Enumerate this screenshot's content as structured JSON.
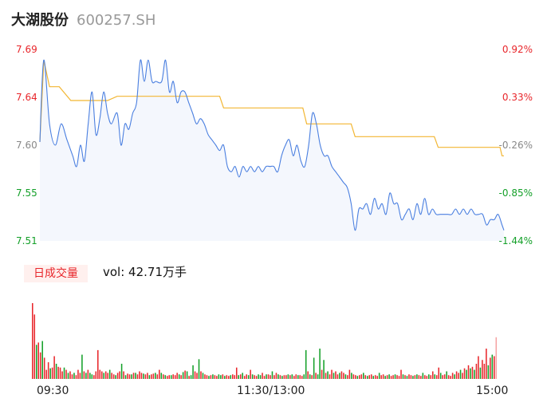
{
  "header": {
    "name": "大湖股份",
    "code": "600257.SH"
  },
  "volume_panel": {
    "badge": "日成交量",
    "vol_label": "vol: 42.71万手"
  },
  "colors": {
    "price_line": "#4a7fe0",
    "avg_line": "#f2b632",
    "up": "#e8262b",
    "down": "#14a029",
    "flat": "#888888",
    "area_fill": "#f4f7fd"
  },
  "chart_data": {
    "type": "line",
    "price_ticks": [
      "7.69",
      "7.64",
      "7.60",
      "7.55",
      "7.51"
    ],
    "pct_ticks": [
      "0.92%",
      "0.33%",
      "-0.26%",
      "-0.85%",
      "-1.44%"
    ],
    "time_ticks": [
      "09:30",
      "11:30/13:00",
      "15:00"
    ],
    "ylim": [
      7.51,
      7.69
    ],
    "sessions": 240,
    "price": [
      [
        0,
        7.603
      ],
      [
        2,
        7.68
      ],
      [
        5,
        7.62
      ],
      [
        8,
        7.6
      ],
      [
        11,
        7.62
      ],
      [
        14,
        7.605
      ],
      [
        17,
        7.59
      ],
      [
        19,
        7.58
      ],
      [
        21,
        7.6
      ],
      [
        23,
        7.585
      ],
      [
        25,
        7.62
      ],
      [
        27,
        7.65
      ],
      [
        29,
        7.61
      ],
      [
        31,
        7.625
      ],
      [
        33,
        7.65
      ],
      [
        35,
        7.63
      ],
      [
        37,
        7.62
      ],
      [
        40,
        7.63
      ],
      [
        42,
        7.6
      ],
      [
        44,
        7.62
      ],
      [
        46,
        7.615
      ],
      [
        48,
        7.63
      ],
      [
        50,
        7.64
      ],
      [
        52,
        7.68
      ],
      [
        54,
        7.66
      ],
      [
        56,
        7.68
      ],
      [
        58,
        7.66
      ],
      [
        60,
        7.66
      ],
      [
        63,
        7.66
      ],
      [
        65,
        7.68
      ],
      [
        67,
        7.65
      ],
      [
        69,
        7.66
      ],
      [
        71,
        7.64
      ],
      [
        73,
        7.65
      ],
      [
        75,
        7.65
      ],
      [
        77,
        7.64
      ],
      [
        79,
        7.63
      ],
      [
        81,
        7.62
      ],
      [
        83,
        7.625
      ],
      [
        85,
        7.62
      ],
      [
        87,
        7.61
      ],
      [
        89,
        7.605
      ],
      [
        91,
        7.6
      ],
      [
        93,
        7.595
      ],
      [
        95,
        7.6
      ],
      [
        97,
        7.58
      ],
      [
        99,
        7.575
      ],
      [
        101,
        7.58
      ],
      [
        103,
        7.57
      ],
      [
        105,
        7.58
      ],
      [
        107,
        7.575
      ],
      [
        109,
        7.58
      ],
      [
        111,
        7.575
      ],
      [
        113,
        7.58
      ],
      [
        115,
        7.575
      ],
      [
        117,
        7.58
      ],
      [
        119,
        7.58
      ],
      [
        121,
        7.58
      ],
      [
        123,
        7.575
      ],
      [
        125,
        7.59
      ],
      [
        127,
        7.6
      ],
      [
        129,
        7.605
      ],
      [
        131,
        7.59
      ],
      [
        133,
        7.6
      ],
      [
        135,
        7.585
      ],
      [
        137,
        7.58
      ],
      [
        139,
        7.6
      ],
      [
        141,
        7.63
      ],
      [
        143,
        7.62
      ],
      [
        145,
        7.6
      ],
      [
        147,
        7.59
      ],
      [
        149,
        7.59
      ],
      [
        151,
        7.58
      ],
      [
        153,
        7.575
      ],
      [
        155,
        7.57
      ],
      [
        157,
        7.565
      ],
      [
        159,
        7.56
      ],
      [
        161,
        7.545
      ],
      [
        163,
        7.52
      ],
      [
        165,
        7.54
      ],
      [
        167,
        7.54
      ],
      [
        169,
        7.545
      ],
      [
        171,
        7.535
      ],
      [
        173,
        7.55
      ],
      [
        175,
        7.54
      ],
      [
        177,
        7.545
      ],
      [
        179,
        7.535
      ],
      [
        181,
        7.555
      ],
      [
        183,
        7.545
      ],
      [
        185,
        7.545
      ],
      [
        187,
        7.53
      ],
      [
        189,
        7.535
      ],
      [
        191,
        7.54
      ],
      [
        193,
        7.53
      ],
      [
        195,
        7.545
      ],
      [
        197,
        7.535
      ],
      [
        199,
        7.55
      ],
      [
        201,
        7.535
      ],
      [
        203,
        7.54
      ],
      [
        205,
        7.535
      ],
      [
        207,
        7.535
      ],
      [
        209,
        7.535
      ],
      [
        211,
        7.535
      ],
      [
        213,
        7.535
      ],
      [
        215,
        7.54
      ],
      [
        217,
        7.535
      ],
      [
        219,
        7.54
      ],
      [
        221,
        7.535
      ],
      [
        223,
        7.54
      ],
      [
        225,
        7.535
      ],
      [
        227,
        7.535
      ],
      [
        229,
        7.535
      ],
      [
        231,
        7.525
      ],
      [
        233,
        7.53
      ],
      [
        235,
        7.53
      ],
      [
        237,
        7.535
      ],
      [
        239,
        7.525
      ],
      [
        240,
        7.52
      ]
    ],
    "avg": [
      [
        0,
        7.603
      ],
      [
        2,
        7.68
      ],
      [
        5,
        7.655
      ],
      [
        10,
        7.655
      ],
      [
        16,
        7.642
      ],
      [
        35,
        7.642
      ],
      [
        40,
        7.646
      ],
      [
        93,
        7.646
      ],
      [
        95,
        7.635
      ],
      [
        136,
        7.635
      ],
      [
        138,
        7.62
      ],
      [
        161,
        7.62
      ],
      [
        163,
        7.608
      ],
      [
        204,
        7.608
      ],
      [
        206,
        7.598
      ],
      [
        238,
        7.598
      ],
      [
        239,
        7.59
      ],
      [
        240,
        7.59
      ]
    ],
    "volume_max": 100,
    "volume": [
      [
        100,
        "u"
      ],
      [
        85,
        "u"
      ],
      [
        45,
        "d"
      ],
      [
        48,
        "u"
      ],
      [
        35,
        "u"
      ],
      [
        50,
        "d"
      ],
      [
        28,
        "u"
      ],
      [
        12,
        "u"
      ],
      [
        22,
        "u"
      ],
      [
        14,
        "d"
      ],
      [
        15,
        "u"
      ],
      [
        30,
        "u"
      ],
      [
        20,
        "d"
      ],
      [
        16,
        "u"
      ],
      [
        15,
        "u"
      ],
      [
        10,
        "u"
      ],
      [
        15,
        "d"
      ],
      [
        12,
        "u"
      ],
      [
        8,
        "d"
      ],
      [
        10,
        "u"
      ],
      [
        6,
        "u"
      ],
      [
        8,
        "d"
      ],
      [
        5,
        "u"
      ],
      [
        12,
        "u"
      ],
      [
        8,
        "u"
      ],
      [
        32,
        "d"
      ],
      [
        10,
        "u"
      ],
      [
        8,
        "d"
      ],
      [
        12,
        "u"
      ],
      [
        8,
        "d"
      ],
      [
        6,
        "d"
      ],
      [
        5,
        "u"
      ],
      [
        10,
        "u"
      ],
      [
        38,
        "u"
      ],
      [
        12,
        "u"
      ],
      [
        10,
        "u"
      ],
      [
        8,
        "d"
      ],
      [
        10,
        "u"
      ],
      [
        8,
        "u"
      ],
      [
        12,
        "d"
      ],
      [
        8,
        "u"
      ],
      [
        6,
        "u"
      ],
      [
        5,
        "d"
      ],
      [
        8,
        "u"
      ],
      [
        10,
        "u"
      ],
      [
        20,
        "d"
      ],
      [
        10,
        "u"
      ],
      [
        5,
        "d"
      ],
      [
        7,
        "u"
      ],
      [
        6,
        "u"
      ],
      [
        6,
        "d"
      ],
      [
        8,
        "u"
      ],
      [
        8,
        "d"
      ],
      [
        6,
        "u"
      ],
      [
        10,
        "u"
      ],
      [
        8,
        "u"
      ],
      [
        7,
        "d"
      ],
      [
        6,
        "u"
      ],
      [
        8,
        "u"
      ],
      [
        5,
        "d"
      ],
      [
        6,
        "u"
      ],
      [
        7,
        "u"
      ],
      [
        8,
        "d"
      ],
      [
        6,
        "u"
      ],
      [
        12,
        "u"
      ],
      [
        8,
        "d"
      ],
      [
        6,
        "u"
      ],
      [
        5,
        "d"
      ],
      [
        4,
        "u"
      ],
      [
        5,
        "u"
      ],
      [
        5,
        "d"
      ],
      [
        6,
        "u"
      ],
      [
        5,
        "u"
      ],
      [
        8,
        "u"
      ],
      [
        6,
        "d"
      ],
      [
        5,
        "u"
      ],
      [
        9,
        "d"
      ],
      [
        11,
        "u"
      ],
      [
        10,
        "d"
      ],
      [
        4,
        "u"
      ],
      [
        5,
        "d"
      ],
      [
        18,
        "d"
      ],
      [
        10,
        "u"
      ],
      [
        8,
        "u"
      ],
      [
        26,
        "d"
      ],
      [
        10,
        "u"
      ],
      [
        8,
        "d"
      ],
      [
        6,
        "u"
      ],
      [
        5,
        "u"
      ],
      [
        4,
        "d"
      ],
      [
        5,
        "u"
      ],
      [
        6,
        "d"
      ],
      [
        5,
        "u"
      ],
      [
        4,
        "u"
      ],
      [
        6,
        "d"
      ],
      [
        5,
        "d"
      ],
      [
        6,
        "u"
      ],
      [
        4,
        "d"
      ],
      [
        5,
        "u"
      ],
      [
        4,
        "u"
      ],
      [
        5,
        "d"
      ],
      [
        6,
        "u"
      ],
      [
        5,
        "u"
      ],
      [
        15,
        "u"
      ],
      [
        5,
        "d"
      ],
      [
        6,
        "u"
      ],
      [
        8,
        "d"
      ],
      [
        4,
        "u"
      ],
      [
        6,
        "u"
      ],
      [
        5,
        "d"
      ],
      [
        12,
        "u"
      ],
      [
        6,
        "d"
      ],
      [
        5,
        "u"
      ],
      [
        4,
        "u"
      ],
      [
        6,
        "d"
      ],
      [
        5,
        "d"
      ],
      [
        8,
        "u"
      ],
      [
        4,
        "u"
      ],
      [
        6,
        "d"
      ],
      [
        6,
        "u"
      ],
      [
        5,
        "u"
      ],
      [
        10,
        "d"
      ],
      [
        5,
        "u"
      ],
      [
        8,
        "u"
      ],
      [
        6,
        "d"
      ],
      [
        5,
        "u"
      ],
      [
        4,
        "d"
      ],
      [
        5,
        "u"
      ],
      [
        5,
        "u"
      ],
      [
        6,
        "d"
      ],
      [
        5,
        "u"
      ],
      [
        6,
        "d"
      ],
      [
        4,
        "u"
      ],
      [
        6,
        "u"
      ],
      [
        5,
        "d"
      ],
      [
        5,
        "u"
      ],
      [
        4,
        "u"
      ],
      [
        6,
        "d"
      ],
      [
        38,
        "d"
      ],
      [
        10,
        "u"
      ],
      [
        6,
        "d"
      ],
      [
        5,
        "u"
      ],
      [
        28,
        "d"
      ],
      [
        8,
        "u"
      ],
      [
        6,
        "d"
      ],
      [
        40,
        "d"
      ],
      [
        12,
        "u"
      ],
      [
        25,
        "d"
      ],
      [
        8,
        "u"
      ],
      [
        10,
        "d"
      ],
      [
        6,
        "u"
      ],
      [
        12,
        "u"
      ],
      [
        8,
        "d"
      ],
      [
        10,
        "u"
      ],
      [
        6,
        "u"
      ],
      [
        8,
        "d"
      ],
      [
        10,
        "u"
      ],
      [
        8,
        "u"
      ],
      [
        6,
        "d"
      ],
      [
        5,
        "u"
      ],
      [
        12,
        "u"
      ],
      [
        8,
        "d"
      ],
      [
        6,
        "u"
      ],
      [
        5,
        "u"
      ],
      [
        4,
        "d"
      ],
      [
        5,
        "u"
      ],
      [
        6,
        "u"
      ],
      [
        8,
        "d"
      ],
      [
        5,
        "u"
      ],
      [
        4,
        "d"
      ],
      [
        5,
        "u"
      ],
      [
        6,
        "u"
      ],
      [
        4,
        "d"
      ],
      [
        5,
        "u"
      ],
      [
        4,
        "u"
      ],
      [
        8,
        "d"
      ],
      [
        5,
        "u"
      ],
      [
        6,
        "u"
      ],
      [
        4,
        "d"
      ],
      [
        5,
        "u"
      ],
      [
        6,
        "d"
      ],
      [
        4,
        "u"
      ],
      [
        5,
        "u"
      ],
      [
        6,
        "d"
      ],
      [
        5,
        "u"
      ],
      [
        4,
        "u"
      ],
      [
        12,
        "u"
      ],
      [
        6,
        "d"
      ],
      [
        5,
        "u"
      ],
      [
        4,
        "d"
      ],
      [
        6,
        "u"
      ],
      [
        5,
        "u"
      ],
      [
        4,
        "d"
      ],
      [
        5,
        "u"
      ],
      [
        6,
        "d"
      ],
      [
        5,
        "u"
      ],
      [
        4,
        "u"
      ],
      [
        8,
        "d"
      ],
      [
        5,
        "u"
      ],
      [
        4,
        "u"
      ],
      [
        6,
        "d"
      ],
      [
        5,
        "u"
      ],
      [
        10,
        "u"
      ],
      [
        6,
        "d"
      ],
      [
        5,
        "u"
      ],
      [
        15,
        "u"
      ],
      [
        8,
        "d"
      ],
      [
        5,
        "u"
      ],
      [
        6,
        "u"
      ],
      [
        10,
        "d"
      ],
      [
        5,
        "u"
      ],
      [
        4,
        "u"
      ],
      [
        8,
        "u"
      ],
      [
        6,
        "d"
      ],
      [
        10,
        "u"
      ],
      [
        8,
        "u"
      ],
      [
        12,
        "d"
      ],
      [
        8,
        "u"
      ],
      [
        14,
        "u"
      ],
      [
        12,
        "d"
      ],
      [
        18,
        "u"
      ],
      [
        14,
        "d"
      ],
      [
        16,
        "u"
      ],
      [
        12,
        "d"
      ],
      [
        20,
        "u"
      ],
      [
        30,
        "u"
      ],
      [
        15,
        "d"
      ],
      [
        25,
        "u"
      ],
      [
        20,
        "u"
      ],
      [
        40,
        "u"
      ],
      [
        18,
        "d"
      ],
      [
        28,
        "u"
      ],
      [
        32,
        "d"
      ],
      [
        30,
        "u"
      ],
      [
        55,
        "flat"
      ]
    ]
  }
}
